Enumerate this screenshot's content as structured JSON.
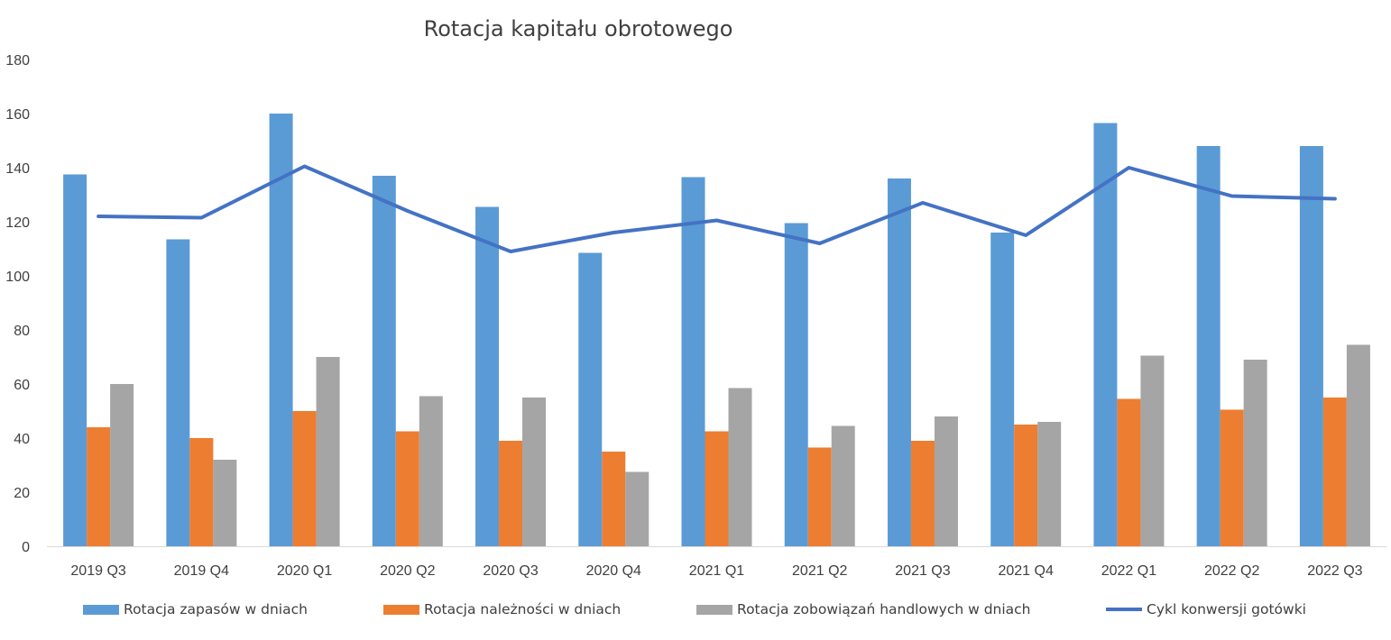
{
  "chart_data": {
    "type": "bar",
    "title": "Rotacja kapitału obrotowego",
    "xlabel": "",
    "ylabel": "",
    "ylim": [
      0,
      180
    ],
    "yticks": [
      0,
      20,
      40,
      60,
      80,
      100,
      120,
      140,
      160,
      180
    ],
    "grid": false,
    "legend_position": "bottom",
    "categories": [
      "2019 Q3",
      "2019 Q4",
      "2020 Q1",
      "2020 Q2",
      "2020 Q3",
      "2020 Q4",
      "2021 Q1",
      "2021 Q2",
      "2021 Q3",
      "2021 Q4",
      "2022 Q1",
      "2022 Q2",
      "2022 Q3"
    ],
    "series": [
      {
        "name": "Rotacja zapasów w dniach",
        "type": "bar",
        "color": "#5B9BD5",
        "values": [
          137.5,
          113.5,
          160,
          137,
          125.5,
          108.5,
          136.5,
          119.5,
          136,
          116,
          156.5,
          148,
          148
        ]
      },
      {
        "name": "Rotacja należności w dniach",
        "type": "bar",
        "color": "#ED7D31",
        "values": [
          44,
          40,
          50,
          42.5,
          39,
          35,
          42.5,
          36.5,
          39,
          45,
          54.5,
          50.5,
          55
        ]
      },
      {
        "name": "Rotacja zobowiązań handlowych w dniach",
        "type": "bar",
        "color": "#A5A5A5",
        "values": [
          60,
          32,
          70,
          55.5,
          55,
          27.5,
          58.5,
          44.5,
          48,
          46,
          70.5,
          69,
          74.5
        ]
      },
      {
        "name": "Cykl konwersji gotówki",
        "type": "line",
        "color": "#4472C4",
        "values": [
          122,
          121.5,
          140.5,
          124,
          109,
          116,
          120.5,
          112,
          127,
          115,
          140,
          129.5,
          128.5
        ]
      }
    ]
  }
}
